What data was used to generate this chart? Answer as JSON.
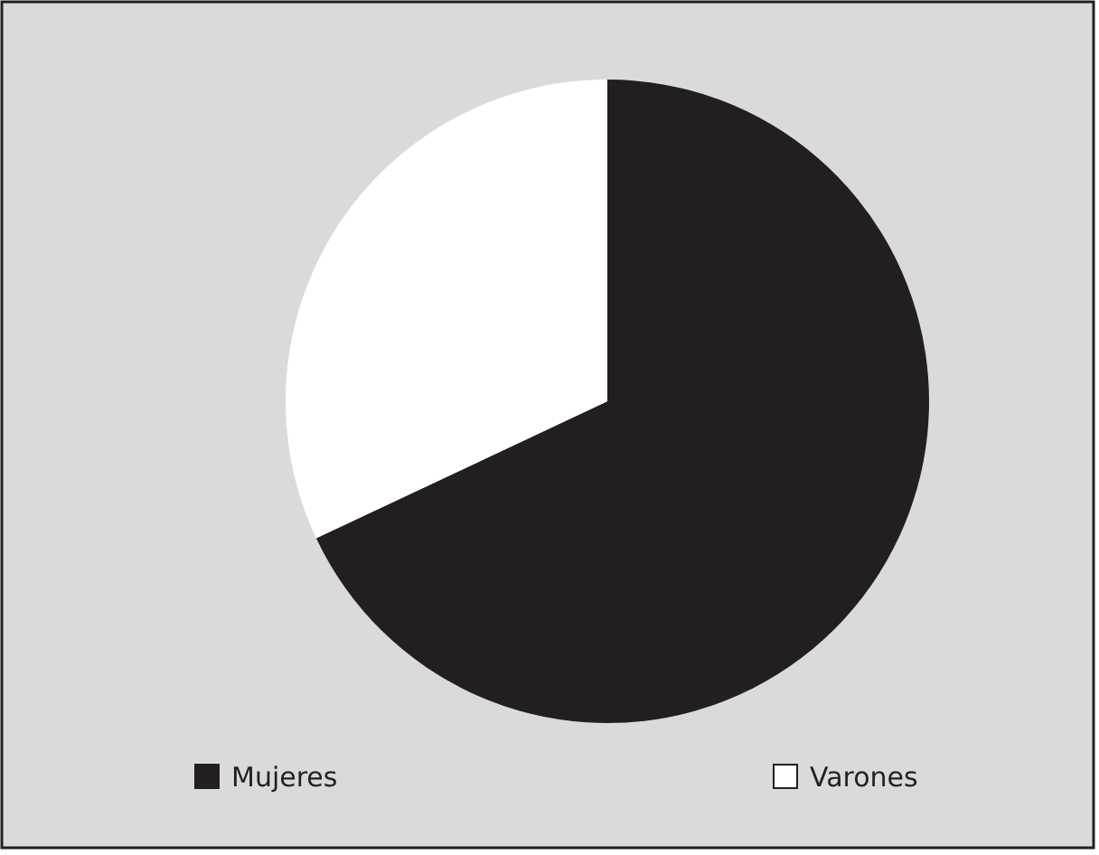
{
  "chart_data": {
    "type": "pie",
    "categories": [
      "Mujeres",
      "Varones"
    ],
    "values": [
      68,
      32
    ],
    "colors": [
      "#231f20",
      "#ffffff"
    ],
    "legend": "bottom"
  }
}
